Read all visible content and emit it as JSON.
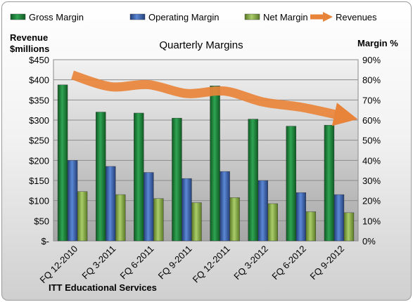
{
  "chart_data": {
    "type": "bar",
    "title": "Quarterly Margins",
    "company": "ITT Educational Services",
    "y_left_label": [
      "Revenue",
      "$millions"
    ],
    "y_right_label": "Margin %",
    "y_left_ticks": [
      "$-",
      "$50",
      "$100",
      "$150",
      "$200",
      "$250",
      "$300",
      "$350",
      "$400",
      "$450"
    ],
    "y_right_ticks": [
      "0%",
      "10%",
      "20%",
      "30%",
      "40%",
      "50%",
      "60%",
      "70%",
      "80%",
      "90%"
    ],
    "ylim_left": [
      0,
      450
    ],
    "ylim_right": [
      0,
      90
    ],
    "categories": [
      "FQ 12-2010",
      "FQ 3-2011",
      "FQ 6-2011",
      "FQ 9-2011",
      "FQ 12-2011",
      "FQ 3-2012",
      "FQ 6-2012",
      "FQ 9-2012"
    ],
    "series": [
      {
        "name": "Gross Margin",
        "axis": "right",
        "unit": "%",
        "color": "#1e8a3c",
        "values": [
          77.5,
          64,
          63.5,
          61,
          77,
          60.5,
          57,
          57.5
        ]
      },
      {
        "name": "Operating Margin",
        "axis": "right",
        "unit": "%",
        "color": "#3f6cc0",
        "values": [
          40,
          37,
          34,
          31,
          34.5,
          30,
          24,
          23
        ]
      },
      {
        "name": "Net Margin",
        "axis": "right",
        "unit": "%",
        "color": "#8fb850",
        "values": [
          24.5,
          23,
          21,
          19,
          21.5,
          18.5,
          14.5,
          14
        ]
      },
      {
        "name": "Revenues",
        "axis": "left",
        "unit": "$M",
        "color": "#e8843a",
        "type": "line",
        "values": [
          412,
          383,
          388,
          366,
          372,
          345,
          332,
          312
        ]
      }
    ],
    "legend_position": "top",
    "grid": true
  }
}
